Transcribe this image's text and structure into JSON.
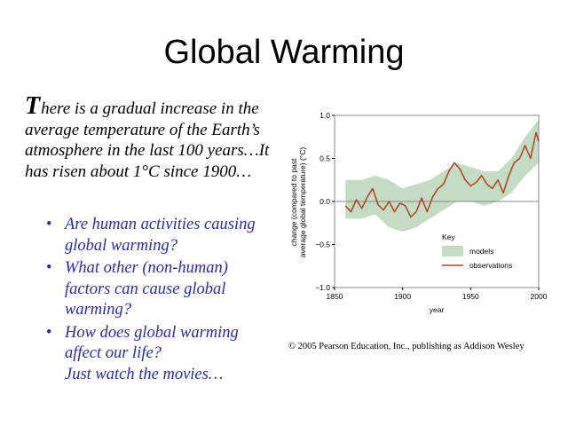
{
  "slide": {
    "title": "Global Warming",
    "intro_initial": "T",
    "intro_rest": "here is a gradual increase in the average temperature of the Earth’s atmosphere in the last 100 years…It has risen about 1°C since 1900…",
    "bullets": [
      "Are human activities causing global warming?",
      "What other (non-human) factors can cause global warming?",
      "How does global warming affect our life?"
    ],
    "bullet_extra": "Just watch the movies…",
    "copyright": "© 2005 Pearson Education, Inc., publishing as Addison Wesley"
  },
  "chart_data": {
    "type": "line",
    "xlabel": "year",
    "ylabel_line1": "change (compared to past",
    "ylabel_line2": "average global temperature) (°C)",
    "xlim": [
      1850,
      2000
    ],
    "ylim": [
      -1.0,
      1.0
    ],
    "x_ticks": [
      "1850",
      "1900",
      "1950",
      "2000"
    ],
    "y_ticks": [
      "1.0",
      "0.5",
      "0.0",
      "−0.5",
      "−1.0"
    ],
    "legend_title": "Key",
    "legend": [
      "models",
      "observations"
    ],
    "colors": {
      "models": "#c4dbc4",
      "observations": "#b0401f",
      "axis": "#888888"
    },
    "series": [
      {
        "name": "observations",
        "x": [
          1858,
          1862,
          1866,
          1870,
          1874,
          1878,
          1882,
          1886,
          1890,
          1894,
          1898,
          1902,
          1906,
          1910,
          1914,
          1918,
          1922,
          1926,
          1930,
          1934,
          1938,
          1942,
          1946,
          1950,
          1954,
          1958,
          1962,
          1966,
          1970,
          1974,
          1978,
          1982,
          1986,
          1990,
          1994,
          1998,
          2000
        ],
        "values": [
          -0.05,
          -0.12,
          0.02,
          -0.08,
          0.05,
          0.15,
          -0.04,
          -0.1,
          0.0,
          -0.12,
          -0.02,
          -0.05,
          -0.18,
          -0.12,
          0.04,
          -0.12,
          0.05,
          0.15,
          0.2,
          0.35,
          0.45,
          0.38,
          0.25,
          0.18,
          0.22,
          0.3,
          0.2,
          0.15,
          0.25,
          0.1,
          0.3,
          0.45,
          0.5,
          0.65,
          0.5,
          0.8,
          0.7
        ]
      },
      {
        "name": "models",
        "x": [
          1858,
          1870,
          1880,
          1890,
          1900,
          1910,
          1920,
          1930,
          1940,
          1950,
          1960,
          1970,
          1980,
          1990,
          2000
        ],
        "upper": [
          0.25,
          0.25,
          0.3,
          0.25,
          0.15,
          0.2,
          0.25,
          0.35,
          0.45,
          0.4,
          0.35,
          0.35,
          0.5,
          0.75,
          0.95
        ],
        "lower": [
          -0.2,
          -0.2,
          -0.15,
          -0.3,
          -0.35,
          -0.3,
          -0.2,
          -0.1,
          0.0,
          0.0,
          -0.05,
          0.0,
          0.1,
          0.3,
          0.45
        ]
      }
    ]
  }
}
